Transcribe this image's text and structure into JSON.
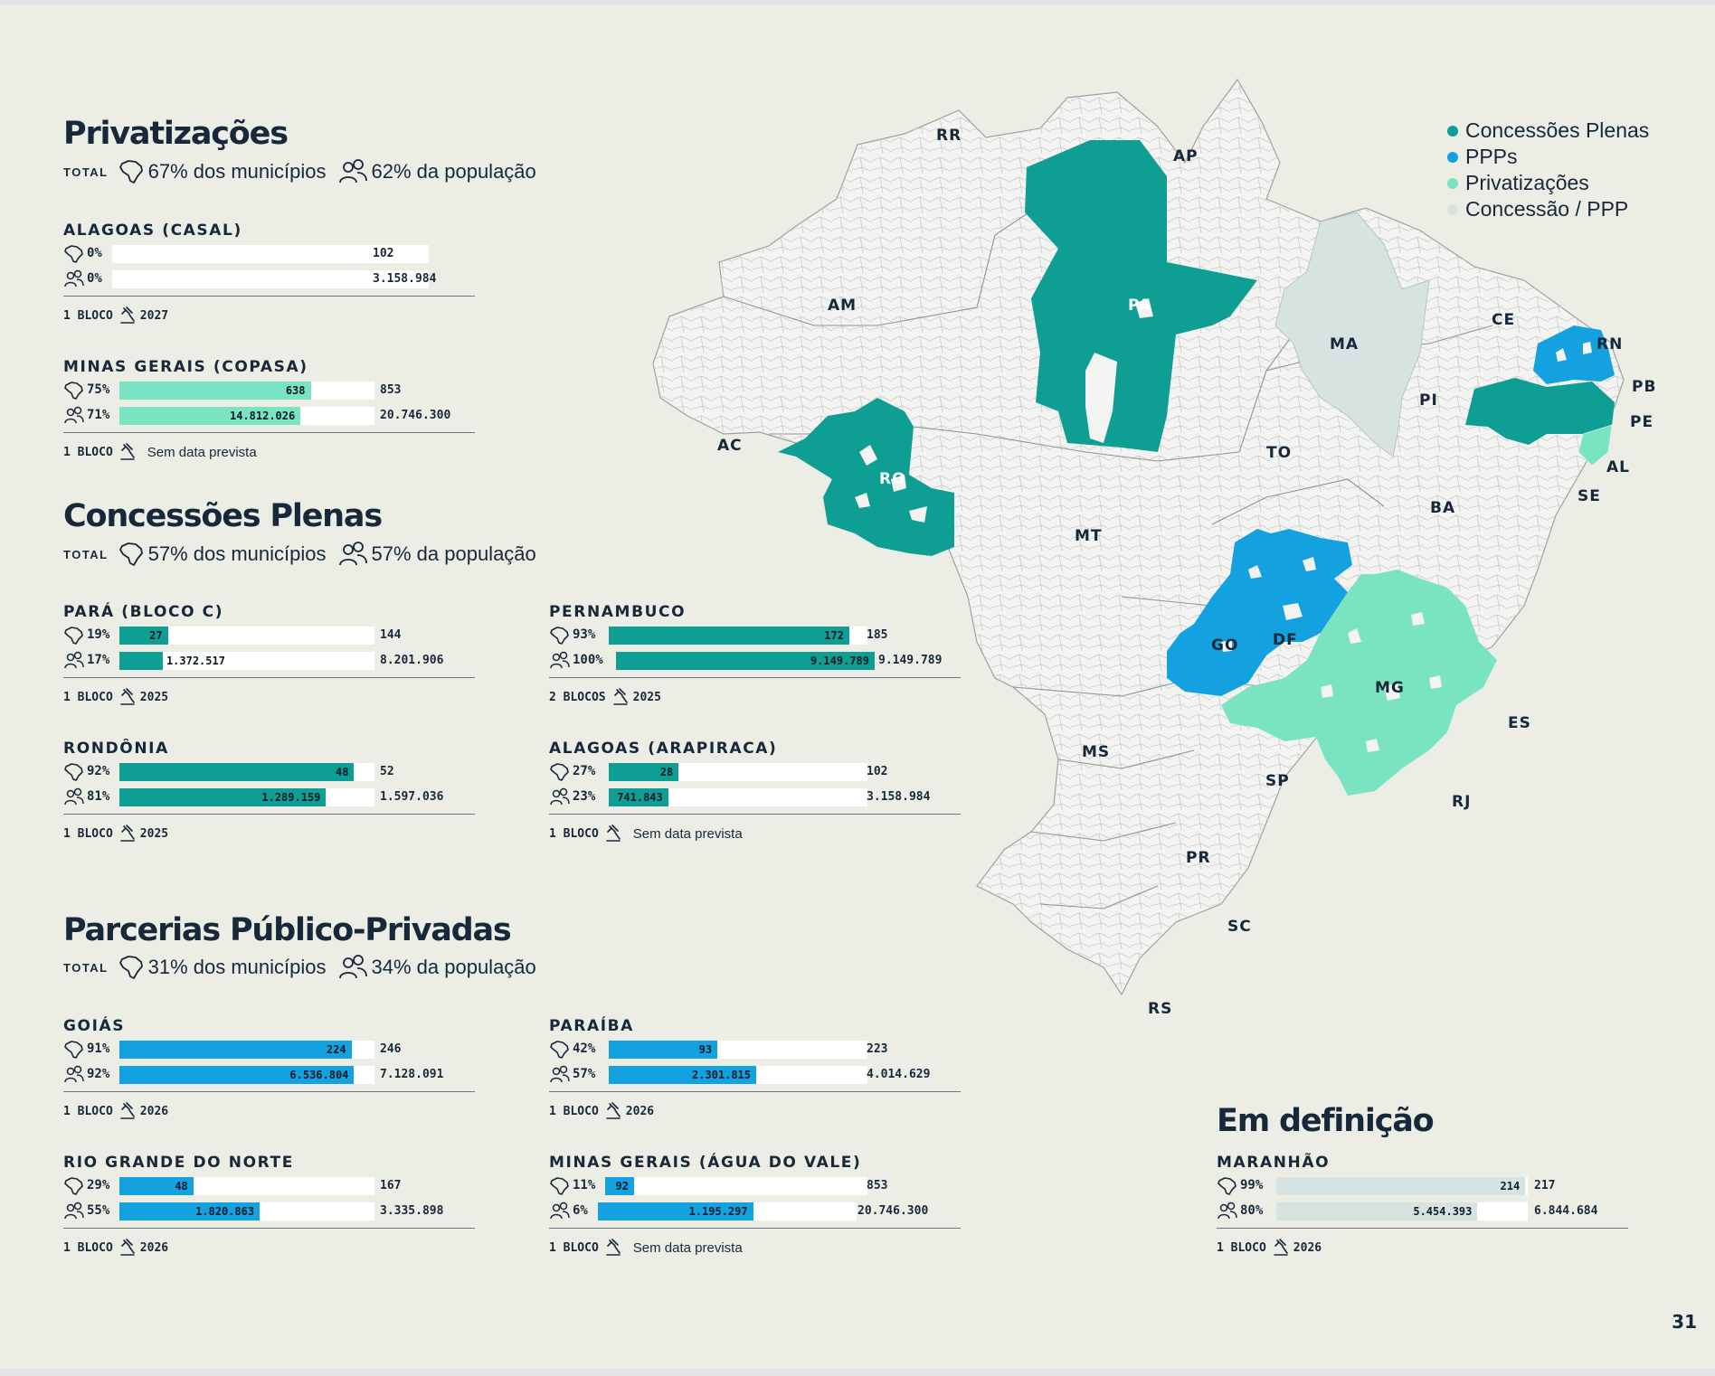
{
  "page_number": "31",
  "legend": [
    {
      "label": "Concessões Plenas",
      "color": "#0e9e94"
    },
    {
      "label": "PPPs",
      "color": "#14a1e0"
    },
    {
      "label": "Privatizações",
      "color": "#7ae3c2"
    },
    {
      "label": "Concessão / PPP",
      "color": "#d6e3e1"
    }
  ],
  "colors": {
    "plena": "#0e9e94",
    "ppp": "#14a1e0",
    "priv": "#7ae3c2",
    "def": "#d6e3e1"
  },
  "total_label": "TOTAL",
  "sections": {
    "privatizacoes": {
      "title": "Privatizações",
      "municipios": "67% dos municípios",
      "populacao": "62% da população",
      "blocks": [
        {
          "name": "ALAGOAS (CASAL)",
          "mun_pct": "0%",
          "mun_value": "",
          "mun_total": "102",
          "pop_pct": "0%",
          "pop_value": "",
          "pop_total": "3.158.984",
          "bloco": "1 BLOCO",
          "date": "2027"
        },
        {
          "name": "MINAS GERAIS (COPASA)",
          "mun_pct": "75%",
          "mun_value": "638",
          "mun_total": "853",
          "pop_pct": "71%",
          "pop_value": "14.812.026",
          "pop_total": "20.746.300",
          "bloco": "1 BLOCO",
          "date": "Sem data prevista"
        }
      ]
    },
    "concessoes": {
      "title": "Concessões Plenas",
      "municipios": "57% dos municípios",
      "populacao": "57% da população",
      "blocks": [
        {
          "name": "PARÁ (BLOCO C)",
          "mun_pct": "19%",
          "mun_value": "27",
          "mun_total": "144",
          "pop_pct": "17%",
          "pop_value": "1.372.517",
          "pop_total": "8.201.906",
          "bloco": "1 BLOCO",
          "date": "2025"
        },
        {
          "name": "PERNAMBUCO",
          "mun_pct": "93%",
          "mun_value": "172",
          "mun_total": "185",
          "pop_pct": "100%",
          "pop_value": "9.149.789",
          "pop_total": "9.149.789",
          "bloco": "2 BLOCOS",
          "date": "2025"
        },
        {
          "name": "RONDÔNIA",
          "mun_pct": "92%",
          "mun_value": "48",
          "mun_total": "52",
          "pop_pct": "81%",
          "pop_value": "1.289.159",
          "pop_total": "1.597.036",
          "bloco": "1 BLOCO",
          "date": "2025"
        },
        {
          "name": "ALAGOAS (ARAPIRACA)",
          "mun_pct": "27%",
          "mun_value": "28",
          "mun_total": "102",
          "pop_pct": "23%",
          "pop_value": "741.843",
          "pop_total": "3.158.984",
          "bloco": "1 BLOCO",
          "date": "Sem data prevista"
        }
      ]
    },
    "ppp": {
      "title": "Parcerias Público-Privadas",
      "municipios": "31% dos municípios",
      "populacao": "34% da população",
      "blocks": [
        {
          "name": "GOIÁS",
          "mun_pct": "91%",
          "mun_value": "224",
          "mun_total": "246",
          "pop_pct": "92%",
          "pop_value": "6.536.804",
          "pop_total": "7.128.091",
          "bloco": "1 BLOCO",
          "date": "2026"
        },
        {
          "name": "PARAÍBA",
          "mun_pct": "42%",
          "mun_value": "93",
          "mun_total": "223",
          "pop_pct": "57%",
          "pop_value": "2.301.815",
          "pop_total": "4.014.629",
          "bloco": "1 BLOCO",
          "date": "2026"
        },
        {
          "name": "RIO GRANDE DO NORTE",
          "mun_pct": "29%",
          "mun_value": "48",
          "mun_total": "167",
          "pop_pct": "55%",
          "pop_value": "1.820.863",
          "pop_total": "3.335.898",
          "bloco": "1 BLOCO",
          "date": "2026"
        },
        {
          "name": "MINAS GERAIS (ÁGUA DO VALE)",
          "mun_pct": "11%",
          "mun_value": "92",
          "mun_total": "853",
          "pop_pct": "6%",
          "pop_value": "1.195.297",
          "pop_total": "20.746.300",
          "bloco": "1 BLOCO",
          "date": "Sem data prevista"
        }
      ]
    },
    "definicao": {
      "title": "Em definição",
      "blocks": [
        {
          "name": "MARANHÃO",
          "mun_pct": "99%",
          "mun_value": "214",
          "mun_total": "217",
          "pop_pct": "80%",
          "pop_value": "5.454.393",
          "pop_total": "6.844.684",
          "bloco": "1 BLOCO",
          "date": "2026"
        }
      ]
    }
  },
  "map": {
    "labels": [
      "RR",
      "AP",
      "AM",
      "PA",
      "MA",
      "CE",
      "RN",
      "PB",
      "PE",
      "PI",
      "AC",
      "RO",
      "TO",
      "AL",
      "SE",
      "BA",
      "MT",
      "GO",
      "DF",
      "MG",
      "ES",
      "MS",
      "SP",
      "RJ",
      "PR",
      "SC",
      "RS"
    ]
  }
}
